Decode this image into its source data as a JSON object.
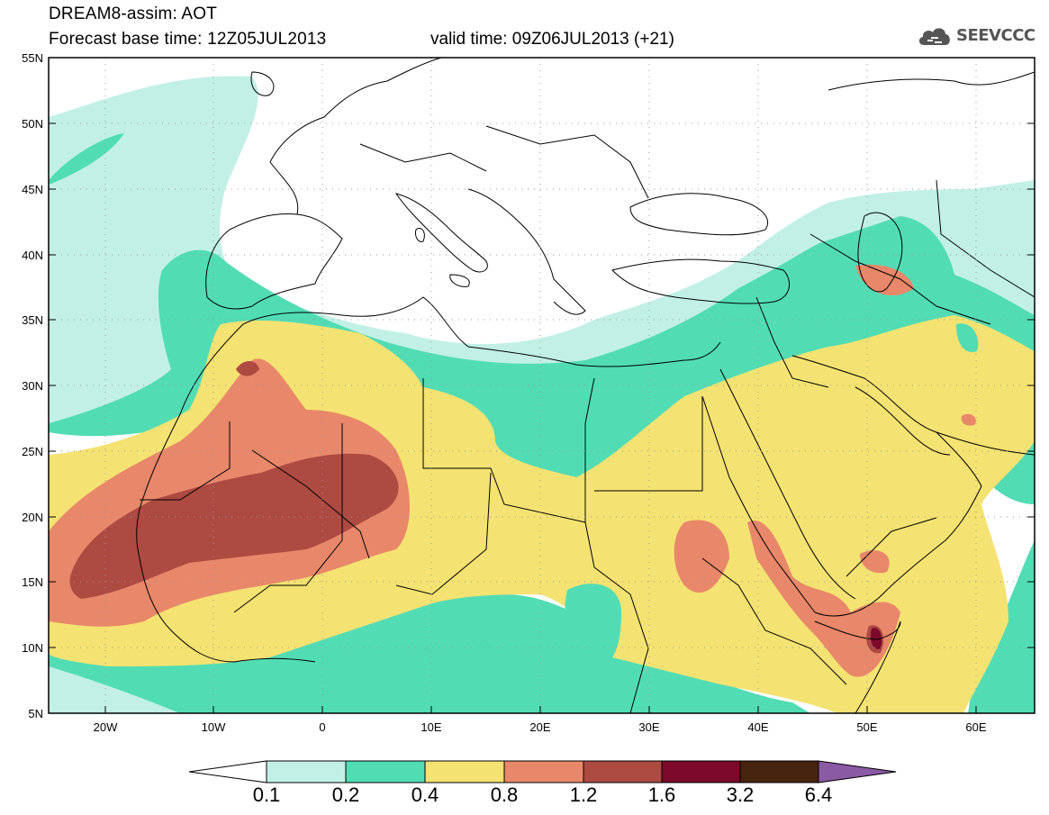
{
  "header": {
    "title": "DREAM8-assim: AOT",
    "base_time": "Forecast base time: 12Z05JUL2013",
    "valid_time": "valid time: 09Z06JUL2013 (+21)",
    "logo_text": "SEEVCCC"
  },
  "axes": {
    "lat_labels": [
      "55N",
      "50N",
      "45N",
      "40N",
      "35N",
      "30N",
      "25N",
      "20N",
      "15N",
      "10N",
      "5N"
    ],
    "lon_labels": [
      "20W",
      "10W",
      "0",
      "10E",
      "20E",
      "30E",
      "40E",
      "50E",
      "60E"
    ],
    "lon_range": [
      -25,
      65
    ],
    "lat_range": [
      5,
      55
    ]
  },
  "colorbar": {
    "labels": [
      "0.1",
      "0.2",
      "0.4",
      "0.8",
      "1.2",
      "1.6",
      "3.2",
      "6.4"
    ],
    "colors": [
      "#c2f0e6",
      "#52dcb4",
      "#f4e272",
      "#e8876a",
      "#ad4a42",
      "#7d0a2a",
      "#46240f",
      "#8a5aa5"
    ]
  },
  "colors": {
    "c01": "#c2f0e6",
    "c02": "#52dcb4",
    "c04": "#f4e272",
    "c08": "#e8876a",
    "c12": "#ad4a42",
    "c16": "#7d0a2a"
  }
}
